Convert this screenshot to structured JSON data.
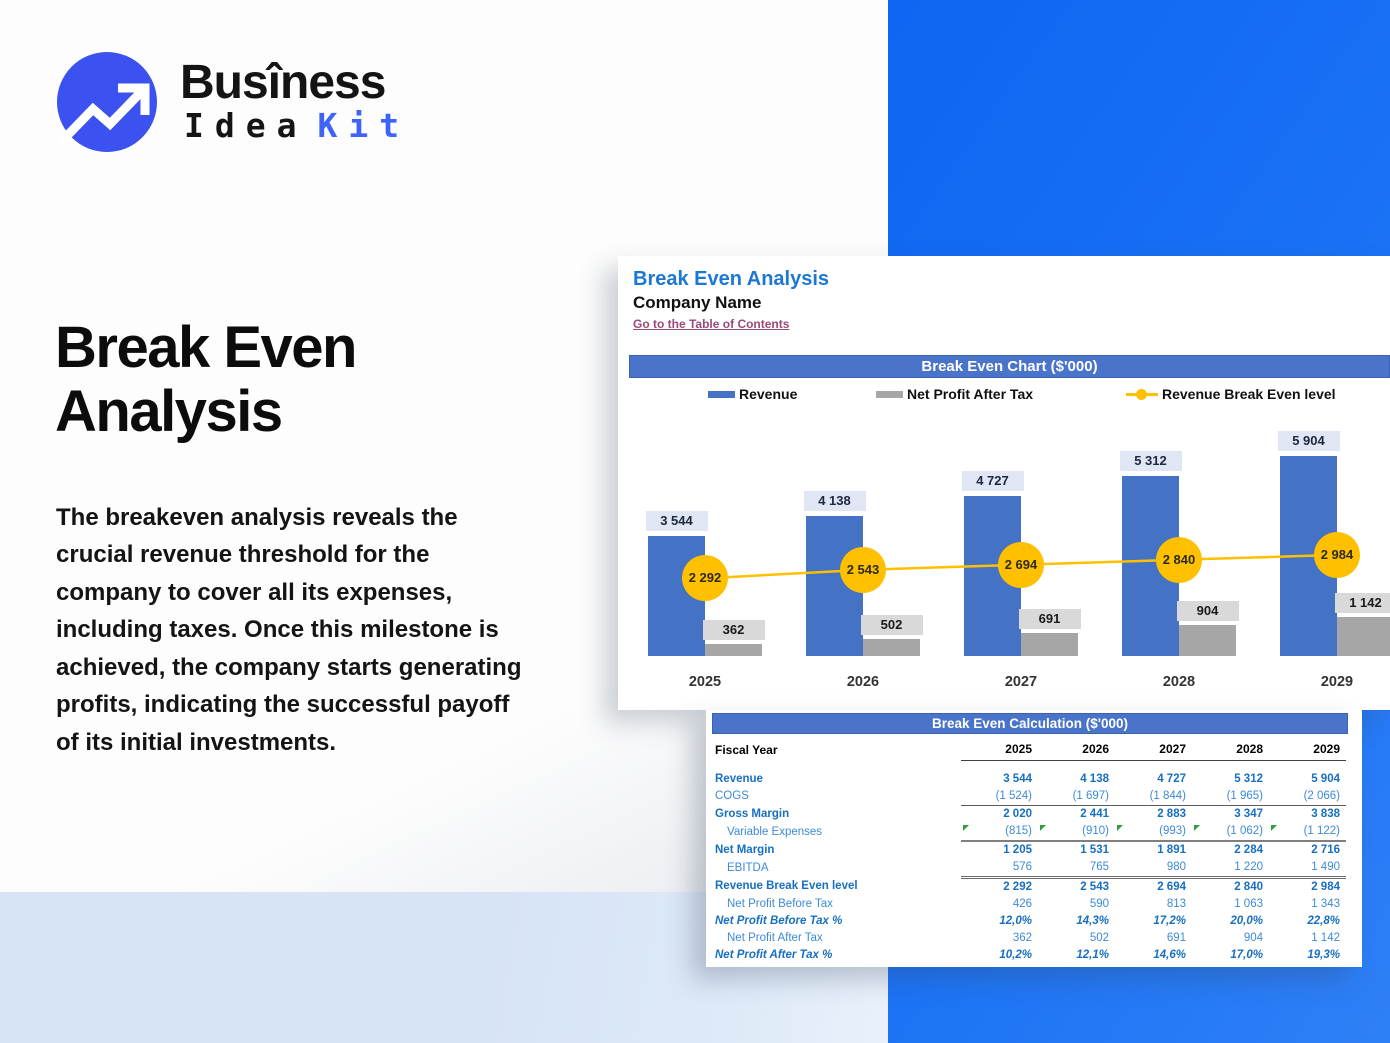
{
  "brand": {
    "name_top": "Busîness",
    "name_bottom_dark": "Idea",
    "name_bottom_accent": "Kit",
    "logo_icon": "trend-up-arrow-circle-icon"
  },
  "hero": {
    "title_line1": "Break Even",
    "title_line2": "Analysis",
    "paragraph": "The breakeven analysis reveals the crucial revenue threshold for the company to cover all its expenses, including taxes. Once this milestone is achieved, the company starts generating profits, indicating the successful payoff of its initial investments."
  },
  "sheet": {
    "title": "Break Even Analysis",
    "company": "Company Name",
    "toc_link": "Go to the Table of Contents"
  },
  "chart": {
    "header": "Break Even Chart ($'000)"
  },
  "chart_data": {
    "type": "bar",
    "title": "Break Even Chart ($'000)",
    "categories": [
      "2025",
      "2026",
      "2027",
      "2028",
      "2029"
    ],
    "series": [
      {
        "name": "Revenue",
        "type": "bar",
        "color": "#4472c4",
        "values": [
          3544,
          4138,
          4727,
          5312,
          5904
        ],
        "labels": [
          "3 544",
          "4 138",
          "4 727",
          "5 312",
          "5 904"
        ]
      },
      {
        "name": "Net Profit After Tax",
        "type": "bar",
        "color": "#a6a6a6",
        "values": [
          362,
          502,
          691,
          904,
          1142
        ],
        "labels": [
          "362",
          "502",
          "691",
          "904",
          "1 142"
        ]
      },
      {
        "name": "Revenue Break Even level",
        "type": "line",
        "color": "#ffc000",
        "values": [
          2292,
          2543,
          2694,
          2840,
          2984
        ],
        "labels": [
          "2 292",
          "2 543",
          "2 694",
          "2 840",
          "2 984"
        ]
      }
    ],
    "ylim": [
      0,
      6000
    ],
    "grid": false,
    "value_labels": true,
    "legend_position": "top"
  },
  "table": {
    "header": "Break Even Calculation ($'000)",
    "row_header_label": "Fiscal Year",
    "years": [
      "2025",
      "2026",
      "2027",
      "2028",
      "2029"
    ],
    "rows": [
      {
        "label": "Revenue",
        "style": "bold",
        "border": "none",
        "indent": false,
        "flags": false,
        "values": [
          "3 544",
          "4 138",
          "4 727",
          "5 312",
          "5 904"
        ]
      },
      {
        "label": "COGS",
        "style": "plain",
        "border": "single",
        "indent": false,
        "flags": false,
        "values": [
          "(1 524)",
          "(1 697)",
          "(1 844)",
          "(1 965)",
          "(2 066)"
        ]
      },
      {
        "label": "Gross Margin",
        "style": "bold",
        "border": "none",
        "indent": false,
        "flags": false,
        "values": [
          "2 020",
          "2 441",
          "2 883",
          "3 347",
          "3 838"
        ]
      },
      {
        "label": "Variable Expenses",
        "style": "plain",
        "border": "thick",
        "indent": true,
        "flags": true,
        "values": [
          "(815)",
          "(910)",
          "(993)",
          "(1 062)",
          "(1 122)"
        ]
      },
      {
        "label": "Net Margin",
        "style": "bold",
        "border": "none",
        "indent": false,
        "flags": false,
        "values": [
          "1 205",
          "1 531",
          "1 891",
          "2 284",
          "2 716"
        ]
      },
      {
        "label": "EBITDA",
        "style": "plain",
        "border": "double",
        "indent": true,
        "flags": false,
        "values": [
          "576",
          "765",
          "980",
          "1 220",
          "1 490"
        ]
      },
      {
        "label": "Revenue Break Even level",
        "style": "bold",
        "border": "none",
        "indent": false,
        "flags": false,
        "values": [
          "2 292",
          "2 543",
          "2 694",
          "2 840",
          "2 984"
        ]
      },
      {
        "label": "Net Profit Before Tax",
        "style": "plain",
        "border": "none",
        "indent": true,
        "flags": false,
        "values": [
          "426",
          "590",
          "813",
          "1 063",
          "1 343"
        ]
      },
      {
        "label": "Net Profit Before Tax %",
        "style": "pct",
        "border": "none",
        "indent": false,
        "flags": false,
        "values": [
          "12,0%",
          "14,3%",
          "17,2%",
          "20,0%",
          "22,8%"
        ]
      },
      {
        "label": "Net Profit After Tax",
        "style": "plain",
        "border": "none",
        "indent": true,
        "flags": false,
        "values": [
          "362",
          "502",
          "691",
          "904",
          "1 142"
        ]
      },
      {
        "label": "Net Profit After Tax %",
        "style": "pct",
        "border": "none",
        "indent": false,
        "flags": false,
        "values": [
          "10,2%",
          "12,1%",
          "14,6%",
          "17,0%",
          "19,3%"
        ]
      }
    ]
  },
  "colors": {
    "background_accent_blue": "#1169f4",
    "background_light_blue": "#d7e4f6",
    "panel_header_blue": "#4a74c9",
    "sheet_title_blue": "#1c78d4",
    "link_maroon": "#99497a",
    "bar_blue": "#4472c4",
    "bar_gray": "#a6a6a6",
    "line_yellow": "#ffc000",
    "flag_green": "#2f9e41",
    "logo_blue": "#3b52f0",
    "brand_accent_blue": "#3e63f7"
  }
}
